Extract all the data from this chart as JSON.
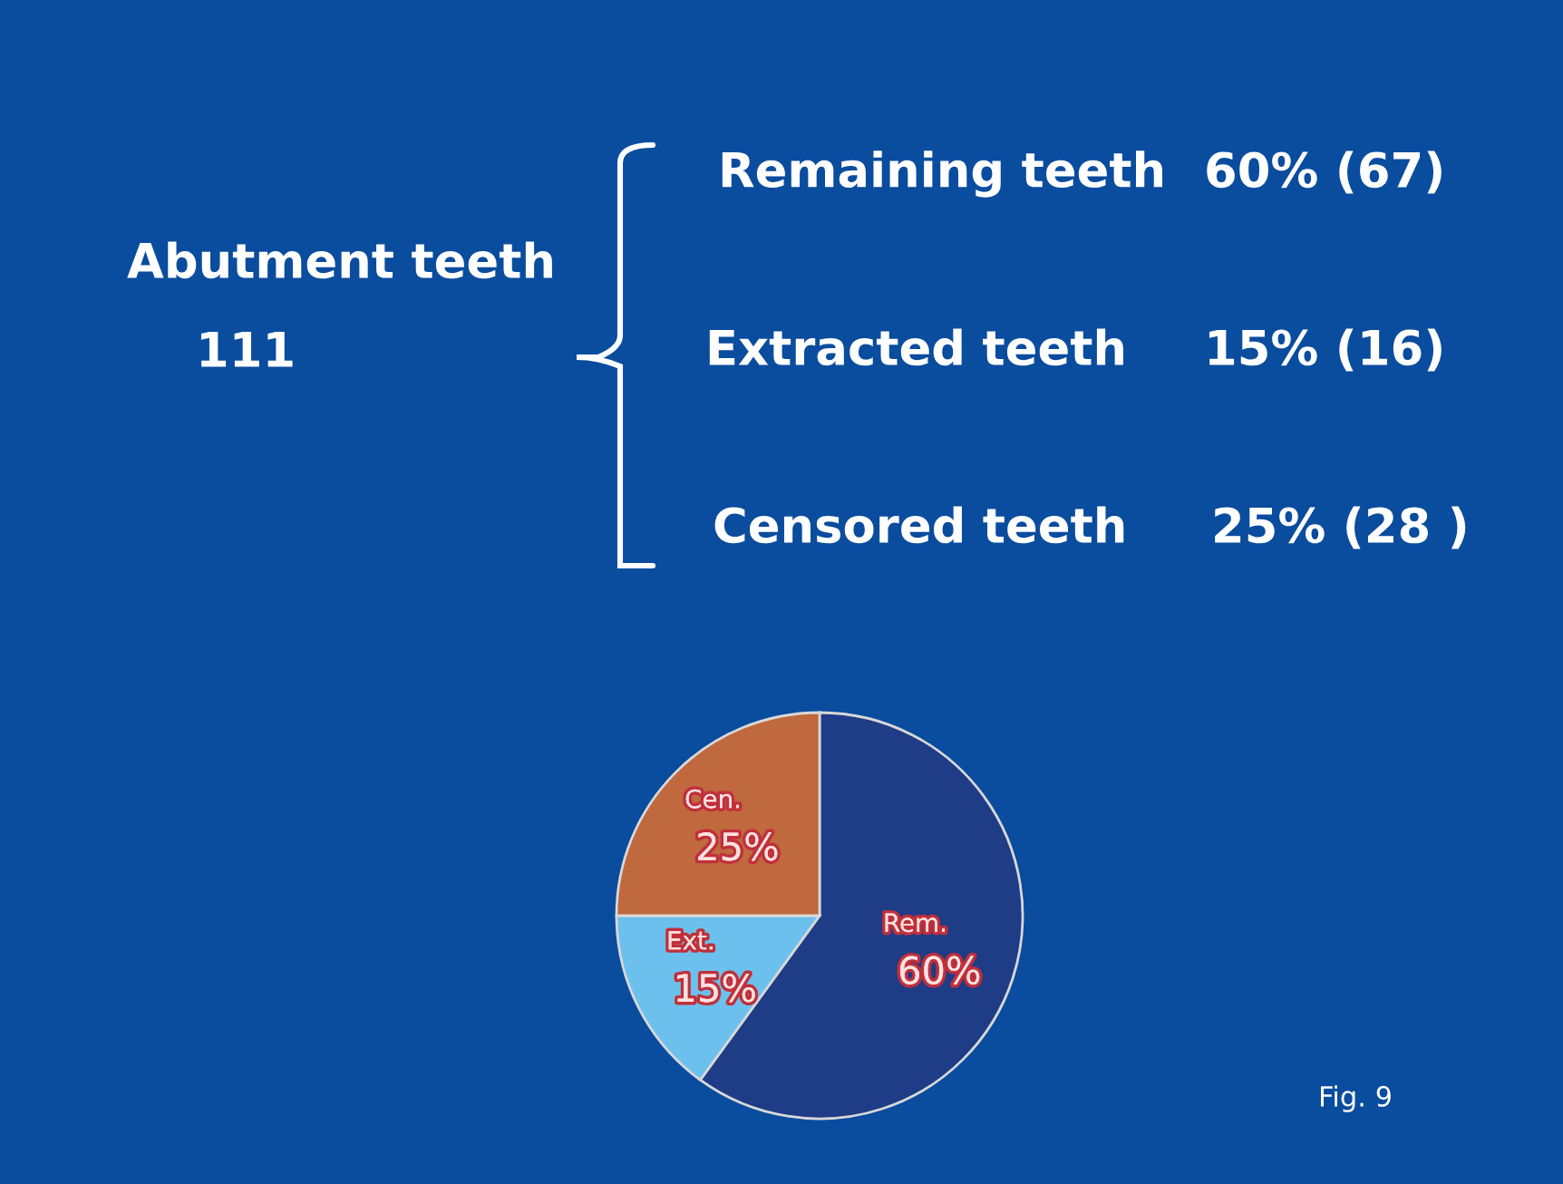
{
  "chart_data": {
    "type": "pie",
    "categories": [
      "Rem.",
      "Ext.",
      "Cen."
    ],
    "values": [
      60,
      15,
      25
    ],
    "colors": [
      "#1f3c86",
      "#6cc0ee",
      "#c0683e"
    ],
    "value_labels": [
      "60%",
      "15%",
      "25%"
    ],
    "annotations": [
      "Abutment teeth",
      "111",
      "Remaining teeth",
      "60% (67)",
      "Extracted teeth",
      "15% (16)",
      "Censored teeth",
      "25% (28 )",
      "Fig. 9"
    ]
  }
}
